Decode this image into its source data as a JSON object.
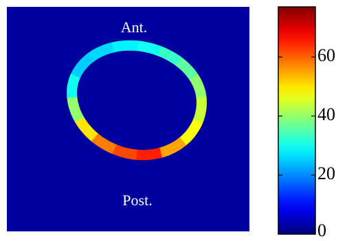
{
  "chart_data": {
    "type": "ring",
    "annotations": [
      "Ant.",
      "Post."
    ],
    "categories": [
      null,
      null,
      null,
      null,
      null,
      null,
      null,
      null,
      null,
      null,
      null,
      null,
      null,
      null,
      null,
      null
    ],
    "values": [
      30,
      33,
      36,
      40,
      44,
      48,
      55,
      65,
      62,
      58,
      50,
      40,
      30,
      25,
      26,
      28
    ],
    "clim": [
      0,
      77
    ],
    "cticks": [
      0,
      20,
      40,
      60
    ],
    "colormap": "jet"
  }
}
